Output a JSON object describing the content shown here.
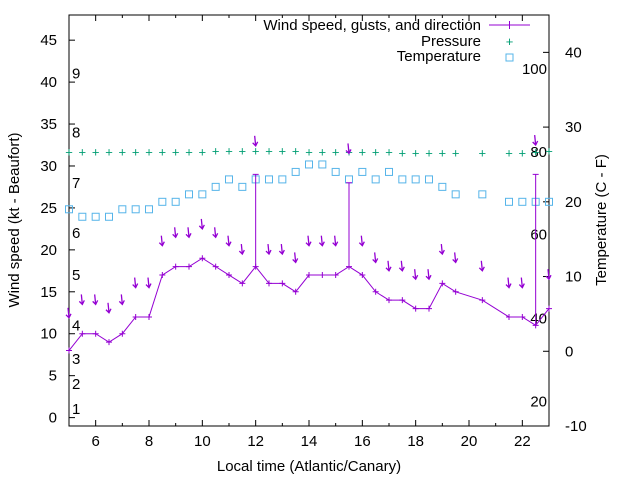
{
  "chart_data": {
    "type": "line",
    "xlabel": "Local time (Atlantic/Canary)",
    "ylabel_left": "Wind speed (kt - Beaufort)",
    "ylabel_right": "Temperature (C - F)",
    "xlim": [
      5,
      23
    ],
    "ylim_left": [
      -1,
      48
    ],
    "ylim_right": [
      -10,
      45
    ],
    "x_ticks": [
      "6",
      "8",
      "10",
      "12",
      "14",
      "16",
      "18",
      "20",
      "22"
    ],
    "y_ticks_left": [
      "0",
      "5",
      "10",
      "15",
      "20",
      "25",
      "30",
      "35",
      "40",
      "45"
    ],
    "y_ticks_right": [
      "-10",
      "0",
      "10",
      "20",
      "30",
      "40"
    ],
    "beaufort_labels": [
      {
        "label": "1",
        "kt": 1
      },
      {
        "label": "2",
        "kt": 4
      },
      {
        "label": "3",
        "kt": 7
      },
      {
        "label": "4",
        "kt": 11
      },
      {
        "label": "5",
        "kt": 17
      },
      {
        "label": "6",
        "kt": 22
      },
      {
        "label": "7",
        "kt": 28
      },
      {
        "label": "8",
        "kt": 34
      },
      {
        "label": "9",
        "kt": 41
      }
    ],
    "fahrenheit_labels": [
      {
        "label": "20",
        "celsius": -6.7
      },
      {
        "label": "40",
        "celsius": 4.4
      },
      {
        "label": "60",
        "celsius": 15.6
      },
      {
        "label": "80",
        "celsius": 26.7
      },
      {
        "label": "100",
        "celsius": 37.8
      }
    ],
    "legend_position": "top-right",
    "series": [
      {
        "name": "Wind speed, gusts, and direction",
        "color": "#9400d3",
        "x": [
          5,
          5.5,
          6,
          6.5,
          7,
          7.5,
          8,
          8.5,
          9,
          9.5,
          10,
          10.5,
          11,
          11.5,
          12,
          12.5,
          13,
          13.5,
          14,
          14.5,
          15,
          15.5,
          16,
          16.5,
          17,
          17.5,
          18,
          18.5,
          19,
          19.5,
          20.5,
          21.5,
          22,
          22.5,
          23
        ],
        "values": [
          8,
          10,
          10,
          9,
          10,
          12,
          12,
          17,
          18,
          18,
          19,
          18,
          17,
          16,
          18,
          16,
          16,
          15,
          17,
          17,
          17,
          18,
          17,
          15,
          14,
          14,
          13,
          13,
          16,
          15,
          14,
          12,
          12,
          11,
          13
        ],
        "gusts": [
          {
            "x": 12,
            "from": 18,
            "to": 29
          },
          {
            "x": 15.5,
            "from": 18,
            "to": 28
          },
          {
            "x": 22.5,
            "from": 11,
            "to": 29
          }
        ],
        "direction_arrows": [
          {
            "x": 5,
            "y": 11.9
          },
          {
            "x": 5.5,
            "y": 13.5
          },
          {
            "x": 6,
            "y": 13.5
          },
          {
            "x": 6.5,
            "y": 12.5
          },
          {
            "x": 7,
            "y": 13.5
          },
          {
            "x": 7.5,
            "y": 15.5
          },
          {
            "x": 8,
            "y": 15.5
          },
          {
            "x": 8.5,
            "y": 20.5
          },
          {
            "x": 9,
            "y": 21.5
          },
          {
            "x": 9.5,
            "y": 21.5
          },
          {
            "x": 10,
            "y": 22.5
          },
          {
            "x": 10.5,
            "y": 21.5
          },
          {
            "x": 11,
            "y": 20.5
          },
          {
            "x": 11.5,
            "y": 19.5
          },
          {
            "x": 12,
            "y": 32.4
          },
          {
            "x": 12.5,
            "y": 19.5
          },
          {
            "x": 13,
            "y": 19.5
          },
          {
            "x": 13.5,
            "y": 18.5
          },
          {
            "x": 14,
            "y": 20.5
          },
          {
            "x": 14.5,
            "y": 20.5
          },
          {
            "x": 15,
            "y": 20.5
          },
          {
            "x": 15.5,
            "y": 31.5
          },
          {
            "x": 16,
            "y": 20.5
          },
          {
            "x": 16.5,
            "y": 18.5
          },
          {
            "x": 17,
            "y": 17.5
          },
          {
            "x": 17.5,
            "y": 17.5
          },
          {
            "x": 18,
            "y": 16.5
          },
          {
            "x": 18.5,
            "y": 16.5
          },
          {
            "x": 19,
            "y": 19.5
          },
          {
            "x": 19.5,
            "y": 18.5
          },
          {
            "x": 20.5,
            "y": 17.5
          },
          {
            "x": 21.5,
            "y": 15.5
          },
          {
            "x": 22,
            "y": 15.5
          },
          {
            "x": 22.5,
            "y": 32.5
          },
          {
            "x": 23,
            "y": 16.5
          }
        ]
      },
      {
        "name": "Pressure",
        "color": "#009e73",
        "axis": "left",
        "x": [
          5,
          5.5,
          6,
          6.5,
          7,
          7.5,
          8,
          8.5,
          9,
          9.5,
          10,
          10.5,
          11,
          11.5,
          12,
          12.5,
          13,
          13.5,
          14,
          14.5,
          15,
          15.5,
          16,
          16.5,
          17,
          17.5,
          18,
          18.5,
          19,
          19.5,
          20.5,
          21.5,
          22,
          22.5,
          23
        ],
        "values": [
          31.6,
          31.6,
          31.6,
          31.6,
          31.6,
          31.6,
          31.6,
          31.6,
          31.6,
          31.6,
          31.6,
          31.7,
          31.7,
          31.7,
          31.7,
          31.7,
          31.7,
          31.7,
          31.6,
          31.6,
          31.6,
          31.6,
          31.6,
          31.6,
          31.6,
          31.5,
          31.5,
          31.5,
          31.5,
          31.5,
          31.5,
          31.5,
          31.5,
          31.6,
          31.7
        ]
      },
      {
        "name": "Temperature",
        "color": "#56b4e9",
        "axis": "right",
        "x": [
          5,
          5.5,
          6,
          6.5,
          7,
          7.5,
          8,
          8.5,
          9,
          9.5,
          10,
          10.5,
          11,
          11.5,
          12,
          12.5,
          13,
          13.5,
          14,
          14.5,
          15,
          15.5,
          16,
          16.5,
          17,
          17.5,
          18,
          18.5,
          19,
          19.5,
          20.5,
          21.5,
          22,
          22.5,
          23
        ],
        "values": [
          19,
          18,
          18,
          18,
          19,
          19,
          19,
          20,
          20,
          21,
          21,
          22,
          23,
          22,
          23,
          23,
          23,
          24,
          25,
          25,
          24,
          23,
          24,
          23,
          24,
          23,
          23,
          23,
          22,
          21,
          21,
          20,
          20,
          20,
          20
        ]
      }
    ]
  }
}
